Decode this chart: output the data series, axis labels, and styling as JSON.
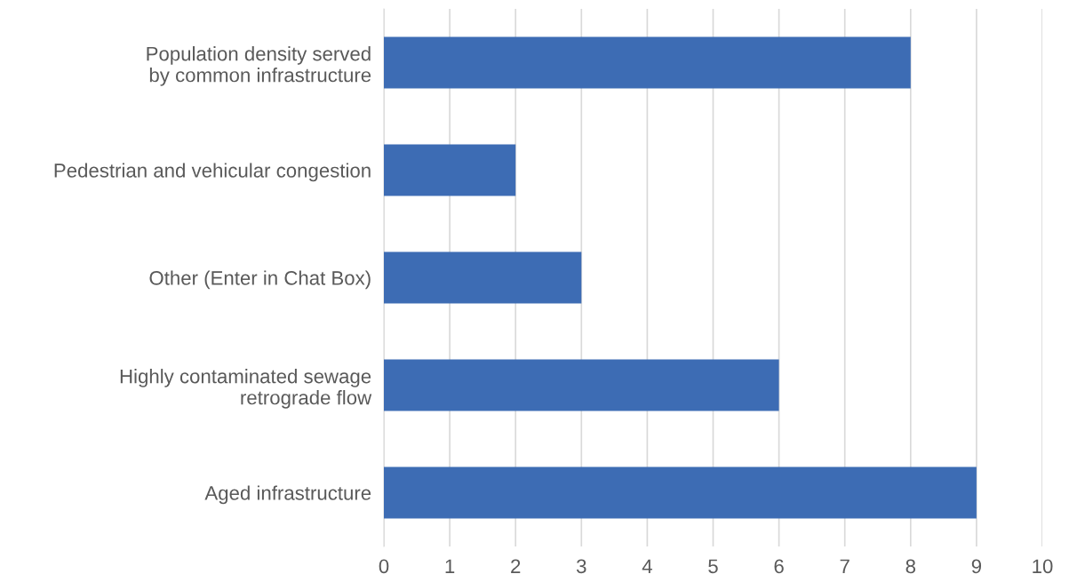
{
  "chart_data": {
    "type": "bar",
    "orientation": "horizontal",
    "categories": [
      "Population density served\nby common infrastructure",
      "Pedestrian and vehicular congestion",
      "Other (Enter in Chat Box)",
      "Highly contaminated sewage\nretrograde flow",
      "Aged infrastructure"
    ],
    "values": [
      8,
      2,
      3,
      6,
      9
    ],
    "color": "#3d6cb4",
    "xlim": [
      0,
      10
    ],
    "xticks": [
      0,
      1,
      2,
      3,
      4,
      5,
      6,
      7,
      8,
      9,
      10
    ],
    "grid": "x"
  }
}
